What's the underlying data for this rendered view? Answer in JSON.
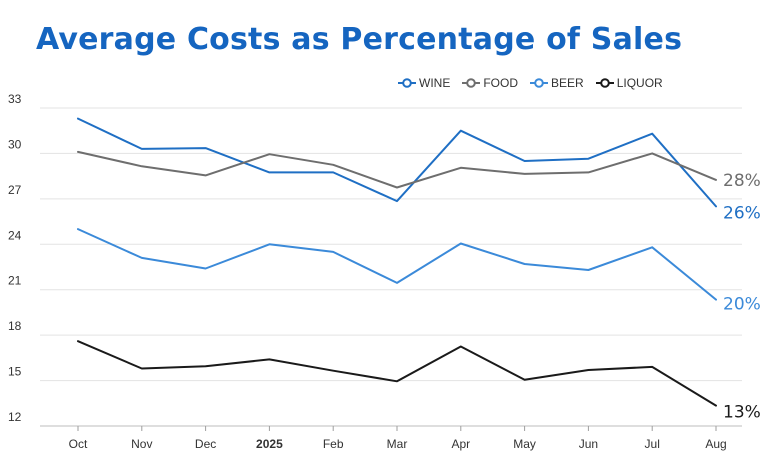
{
  "chart_data": {
    "type": "line",
    "title": "Average Costs as Percentage of Sales",
    "xlabel": "",
    "ylabel": "",
    "categories": [
      "Oct",
      "Nov",
      "Dec",
      "2025",
      "Feb",
      "Mar",
      "Apr",
      "May",
      "Jun",
      "Jul",
      "Aug"
    ],
    "ylim": [
      12,
      33
    ],
    "yticks": [
      12,
      15,
      18,
      21,
      24,
      27,
      30,
      33
    ],
    "grid": true,
    "legend_position": "top-right",
    "series": [
      {
        "name": "WINE",
        "color": "#1f6fc4",
        "values": [
          32.3,
          30.3,
          30.35,
          28.75,
          28.75,
          26.85,
          31.5,
          29.5,
          29.65,
          31.3,
          26.5
        ],
        "end_label": "26%"
      },
      {
        "name": "FOOD",
        "color": "#6e6e6e",
        "values": [
          30.1,
          29.15,
          28.55,
          29.95,
          29.25,
          27.75,
          29.05,
          28.65,
          28.75,
          30.0,
          28.25
        ],
        "end_label": "28%"
      },
      {
        "name": "BEER",
        "color": "#3b8ad9",
        "values": [
          25.0,
          23.1,
          22.4,
          24.0,
          23.5,
          21.45,
          24.05,
          22.7,
          22.3,
          23.8,
          20.35
        ],
        "end_label": "20%"
      },
      {
        "name": "LIQUOR",
        "color": "#1a1a1a",
        "values": [
          17.6,
          15.8,
          15.95,
          16.4,
          15.65,
          14.95,
          17.25,
          15.05,
          15.7,
          15.9,
          13.35
        ],
        "end_label": "13%"
      }
    ]
  }
}
